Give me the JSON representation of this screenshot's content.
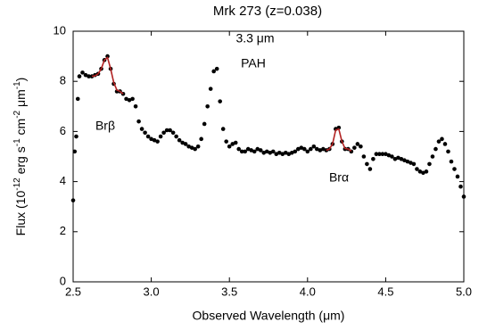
{
  "chart_data": {
    "type": "scatter",
    "title": "Mrk 273 (z=0.038)",
    "x_label": "Observed Wavelength (μm)",
    "y_label": [
      "Flux (10",
      "-12",
      " erg s",
      "-1",
      " cm",
      "-2",
      " μm",
      "-1",
      ")"
    ],
    "annotations": [
      "3.3 μm",
      "PAH",
      "Brβ",
      "Brα"
    ],
    "xlim": [
      2.5,
      5.0
    ],
    "ylim": [
      0,
      10
    ],
    "xticks": [
      2.5,
      {
        "value": 3,
        "label": "3.0"
      },
      3.5,
      {
        "value": 4,
        "label": "4.0"
      },
      4.5,
      {
        "value": 5,
        "label": "5.0"
      }
    ],
    "yticks": [
      0,
      2,
      4,
      6,
      8,
      10
    ],
    "grid": false,
    "series": [
      {
        "mode": "markers",
        "color": "#000000",
        "x": [
          2.5,
          2.51,
          2.52,
          2.53,
          2.54,
          2.56,
          2.58,
          2.6,
          2.62,
          2.64,
          2.66,
          2.68,
          2.7,
          2.72,
          2.74,
          2.76,
          2.78,
          2.8,
          2.82,
          2.84,
          2.86,
          2.88,
          2.9,
          2.92,
          2.94,
          2.96,
          2.98,
          3.0,
          3.02,
          3.04,
          3.06,
          3.08,
          3.1,
          3.12,
          3.14,
          3.16,
          3.18,
          3.2,
          3.22,
          3.24,
          3.26,
          3.28,
          3.3,
          3.32,
          3.34,
          3.36,
          3.38,
          3.4,
          3.42,
          3.44,
          3.46,
          3.48,
          3.5,
          3.52,
          3.54,
          3.56,
          3.58,
          3.6,
          3.62,
          3.64,
          3.66,
          3.68,
          3.7,
          3.72,
          3.74,
          3.76,
          3.78,
          3.8,
          3.82,
          3.84,
          3.86,
          3.88,
          3.9,
          3.92,
          3.94,
          3.96,
          3.98,
          4.0,
          4.02,
          4.04,
          4.06,
          4.08,
          4.1,
          4.12,
          4.14,
          4.16,
          4.18,
          4.2,
          4.22,
          4.24,
          4.26,
          4.28,
          4.3,
          4.32,
          4.34,
          4.36,
          4.38,
          4.4,
          4.42,
          4.44,
          4.46,
          4.48,
          4.5,
          4.52,
          4.54,
          4.56,
          4.58,
          4.6,
          4.62,
          4.64,
          4.66,
          4.68,
          4.7,
          4.72,
          4.74,
          4.76,
          4.78,
          4.8,
          4.82,
          4.84,
          4.86,
          4.88,
          4.9,
          4.92,
          4.94,
          4.96,
          4.98,
          5.0
        ],
        "values": [
          3.25,
          5.2,
          5.8,
          7.3,
          8.2,
          8.35,
          8.25,
          8.2,
          8.2,
          8.25,
          8.3,
          8.5,
          8.85,
          9.0,
          8.5,
          7.9,
          7.6,
          7.6,
          7.5,
          7.3,
          7.25,
          7.3,
          7.0,
          6.4,
          6.1,
          5.95,
          5.8,
          5.7,
          5.65,
          5.6,
          5.8,
          5.95,
          6.05,
          6.05,
          5.95,
          5.8,
          5.65,
          5.55,
          5.5,
          5.4,
          5.35,
          5.3,
          5.4,
          5.7,
          6.3,
          7.0,
          7.7,
          8.4,
          8.5,
          7.2,
          6.1,
          5.6,
          5.4,
          5.5,
          5.55,
          5.3,
          5.2,
          5.2,
          5.3,
          5.25,
          5.2,
          5.3,
          5.25,
          5.15,
          5.2,
          5.15,
          5.2,
          5.1,
          5.15,
          5.1,
          5.15,
          5.1,
          5.15,
          5.2,
          5.3,
          5.35,
          5.3,
          5.2,
          5.3,
          5.4,
          5.3,
          5.25,
          5.3,
          5.25,
          5.3,
          5.5,
          6.1,
          6.15,
          5.6,
          5.3,
          5.3,
          5.2,
          5.35,
          5.5,
          5.4,
          5.0,
          4.7,
          4.5,
          4.9,
          5.1,
          5.1,
          5.1,
          5.1,
          5.05,
          5.0,
          4.9,
          4.95,
          4.9,
          4.85,
          4.8,
          4.75,
          4.7,
          4.5,
          4.4,
          4.35,
          4.4,
          4.7,
          5.0,
          5.3,
          5.6,
          5.7,
          5.5,
          5.2,
          4.8,
          4.5,
          4.2,
          3.8,
          3.4
        ]
      },
      {
        "mode": "line",
        "color": "#b22222",
        "x": [
          2.62,
          2.64,
          2.66,
          2.68,
          2.7,
          2.72,
          2.74,
          2.76,
          2.78,
          2.8,
          2.82
        ],
        "values": [
          8.2,
          8.22,
          8.3,
          8.5,
          8.85,
          8.95,
          8.5,
          7.95,
          7.65,
          7.6,
          7.5
        ]
      },
      {
        "mode": "line",
        "color": "#b22222",
        "x": [
          4.12,
          4.14,
          4.16,
          4.18,
          4.2,
          4.22,
          4.24,
          4.26,
          4.28
        ],
        "values": [
          5.25,
          5.3,
          5.5,
          6.05,
          6.1,
          5.6,
          5.32,
          5.3,
          5.22
        ]
      }
    ]
  }
}
